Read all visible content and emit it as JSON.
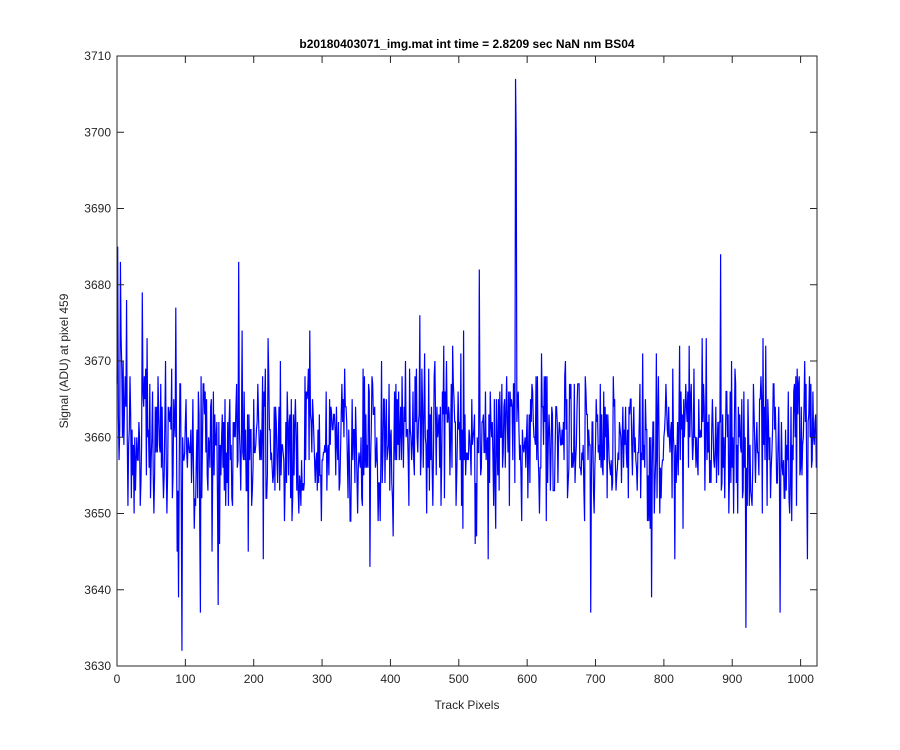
{
  "chart_data": {
    "type": "line",
    "title": "b20180403071_img.mat int time = 2.8209 sec  NaN nm BS04",
    "xlabel": "Track Pixels",
    "ylabel": "Signal (ADU) at pixel 459",
    "xlim": [
      0,
      1024
    ],
    "ylim": [
      3630,
      3710
    ],
    "xticks": [
      0,
      100,
      200,
      300,
      400,
      500,
      600,
      700,
      800,
      900,
      1000
    ],
    "yticks": [
      3630,
      3640,
      3650,
      3660,
      3670,
      3680,
      3690,
      3700,
      3710
    ],
    "grid": false,
    "legend": "none",
    "series": [
      {
        "color": "#0000ff",
        "n_points": 1024,
        "baseline": 3659.5,
        "noise_std": 5.5,
        "features": [
          {
            "x": 1,
            "y": 3685
          },
          {
            "x": 5,
            "y": 3683
          },
          {
            "x": 37,
            "y": 3679
          },
          {
            "x": 95,
            "y": 3632
          },
          {
            "x": 90,
            "y": 3639
          },
          {
            "x": 122,
            "y": 3637
          },
          {
            "x": 148,
            "y": 3638
          },
          {
            "x": 178,
            "y": 3683
          },
          {
            "x": 530,
            "y": 3682
          },
          {
            "x": 583,
            "y": 3707
          },
          {
            "x": 584,
            "y": 3699
          },
          {
            "x": 693,
            "y": 3637
          },
          {
            "x": 782,
            "y": 3639
          },
          {
            "x": 883,
            "y": 3684
          },
          {
            "x": 920,
            "y": 3635
          },
          {
            "x": 970,
            "y": 3637
          },
          {
            "x": 1010,
            "y": 3644
          }
        ]
      }
    ]
  }
}
